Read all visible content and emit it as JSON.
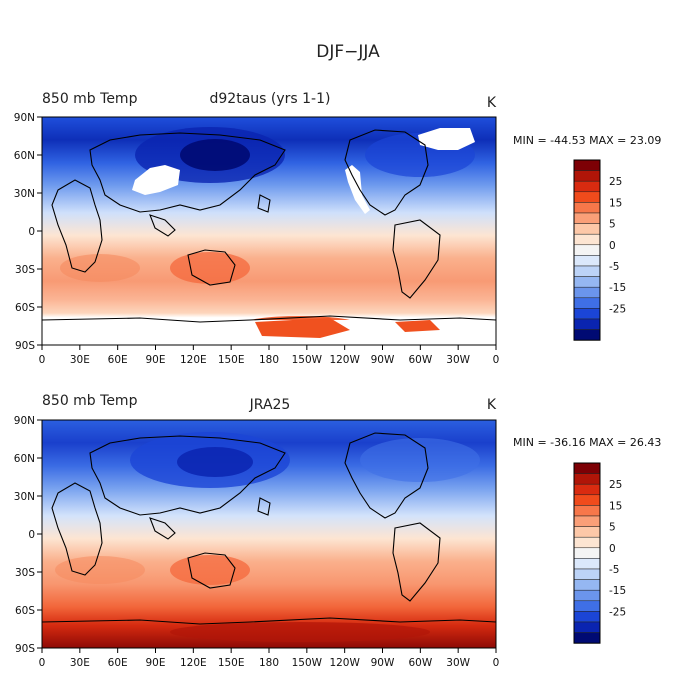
{
  "figure": {
    "title": "DJF−JJA"
  },
  "panels": [
    {
      "variable": "850 mb Temp",
      "source": "d92taus (yrs 1-1)",
      "units": "K",
      "stats": "MIN = -44.53  MAX =  23.09",
      "x_ticks": [
        "0",
        "30E",
        "60E",
        "90E",
        "120E",
        "150E",
        "180",
        "150W",
        "120W",
        "90W",
        "60W",
        "30W",
        "0"
      ],
      "y_ticks": [
        "90N",
        "60N",
        "30N",
        "0",
        "30S",
        "60S",
        "90S"
      ],
      "colorbar_labels": [
        "25",
        "15",
        "5",
        "0",
        "-5",
        "-15",
        "-25"
      ]
    },
    {
      "variable": "850 mb Temp",
      "source": "JRA25",
      "units": "K",
      "stats": "MIN = -36.16  MAX =  26.43",
      "x_ticks": [
        "0",
        "30E",
        "60E",
        "90E",
        "120E",
        "150E",
        "180",
        "150W",
        "120W",
        "90W",
        "60W",
        "30W",
        "0"
      ],
      "y_ticks": [
        "90N",
        "60N",
        "30N",
        "0",
        "30S",
        "60S",
        "90S"
      ],
      "colorbar_labels": [
        "25",
        "15",
        "5",
        "0",
        "-5",
        "-15",
        "-25"
      ]
    }
  ],
  "palette": [
    "#7d0005",
    "#b01508",
    "#d92b10",
    "#f04b1c",
    "#f7774a",
    "#fa9f78",
    "#fdc8a8",
    "#fde5d2",
    "#f4f4f4",
    "#dbe8fb",
    "#bcd3f7",
    "#95b7f2",
    "#6b95ec",
    "#3f6fe6",
    "#1b45d6",
    "#0a24b0",
    "#000a73"
  ]
}
